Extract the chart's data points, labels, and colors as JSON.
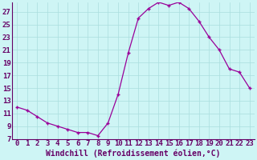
{
  "x": [
    0,
    1,
    2,
    3,
    4,
    5,
    6,
    7,
    8,
    9,
    10,
    11,
    12,
    13,
    14,
    15,
    16,
    17,
    18,
    19,
    20,
    21,
    22,
    23
  ],
  "y": [
    12.0,
    11.5,
    10.5,
    9.5,
    9.0,
    8.5,
    8.0,
    8.0,
    7.5,
    9.5,
    14.0,
    20.5,
    26.0,
    27.5,
    28.5,
    28.0,
    28.5,
    27.5,
    25.5,
    23.0,
    21.0,
    18.0,
    17.5,
    15.0
  ],
  "line_color": "#990099",
  "marker": "+",
  "bg_color": "#cef5f5",
  "grid_color": "#aadddd",
  "xlabel": "Windchill (Refroidissement éolien,°C)",
  "xlabel_color": "#660066",
  "xlim": [
    -0.5,
    23.5
  ],
  "ylim": [
    7,
    28.5
  ],
  "yticks": [
    7,
    9,
    11,
    13,
    15,
    17,
    19,
    21,
    23,
    25,
    27
  ],
  "xticks": [
    0,
    1,
    2,
    3,
    4,
    5,
    6,
    7,
    8,
    9,
    10,
    11,
    12,
    13,
    14,
    15,
    16,
    17,
    18,
    19,
    20,
    21,
    22,
    23
  ],
  "tick_color": "#660066",
  "font_size": 6.5,
  "xlabel_fontsize": 7
}
